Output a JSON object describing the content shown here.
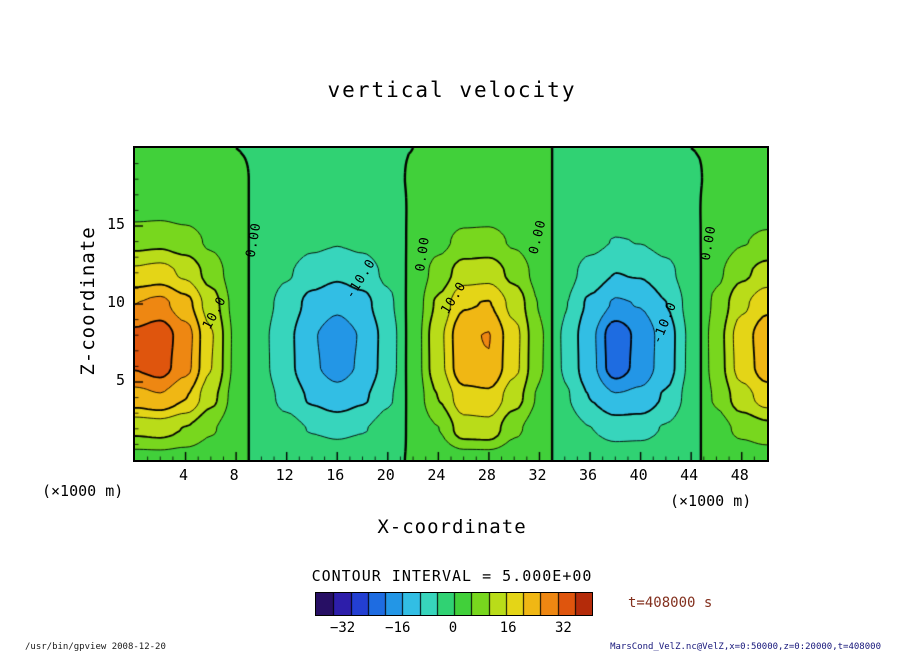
{
  "chart_data": {
    "type": "heatmap",
    "title": "vertical velocity",
    "xlabel": "X-coordinate",
    "ylabel": "Z-coordinate",
    "x_axis_unit": "(×1000 m)",
    "y_axis_unit": "(×1000 m)",
    "x_range": [
      0,
      50
    ],
    "z_range": [
      0,
      20
    ],
    "x_ticks": [
      4,
      8,
      12,
      16,
      20,
      24,
      28,
      32,
      36,
      40,
      44,
      48
    ],
    "z_ticks": [
      5,
      10,
      15
    ],
    "x": [
      0,
      2,
      4,
      6,
      8,
      10,
      12,
      14,
      16,
      18,
      20,
      22,
      24,
      26,
      28,
      30,
      32,
      34,
      36,
      38,
      40,
      42,
      44,
      46,
      48,
      50
    ],
    "z": [
      0,
      2,
      4,
      6,
      8,
      10,
      12,
      14,
      16,
      18,
      20
    ],
    "field": [
      [
        2.6,
        2.7,
        2.2,
        1.3,
        0.3,
        -0.3,
        -0.7,
        -1.2,
        -1.4,
        -1.2,
        -0.6,
        0.2,
        1.1,
        2.0,
        2.1,
        1.4,
        0.5,
        -0.5,
        -1.1,
        -1.6,
        -1.5,
        -1.0,
        -0.3,
        0.6,
        1.4,
        1.9
      ],
      [
        11.2,
        11.9,
        9.8,
        5.6,
        1.4,
        -1.4,
        -3.2,
        -5.3,
        -6.3,
        -5.3,
        -2.8,
        0.7,
        4.9,
        12.8,
        13.2,
        6.0,
        2.1,
        -2.1,
        -4.9,
        -7.0,
        -6.7,
        -4.6,
        -1.4,
        2.8,
        6.3,
        8.4
      ],
      [
        23.0,
        24.5,
        20.2,
        11.5,
        2.9,
        -2.9,
        -6.5,
        -10.8,
        -13.0,
        -10.8,
        -5.8,
        1.4,
        10.1,
        18.0,
        18.7,
        12.2,
        4.3,
        -4.3,
        -10.1,
        -14.4,
        -13.7,
        -9.4,
        -2.9,
        5.8,
        13.0,
        17.3
      ],
      [
        30.4,
        32.3,
        26.6,
        15.2,
        3.8,
        -3.8,
        -8.6,
        -14.3,
        -17.1,
        -14.3,
        -7.6,
        1.9,
        13.3,
        23.8,
        24.7,
        16.2,
        5.7,
        -5.7,
        -13.3,
        -23.0,
        -18.1,
        -12.4,
        -3.8,
        7.6,
        17.1,
        22.8
      ],
      [
        31.0,
        33.0,
        27.2,
        15.5,
        3.9,
        -3.9,
        -8.7,
        -14.6,
        -17.5,
        -14.6,
        -7.8,
        1.9,
        13.6,
        24.3,
        25.2,
        16.5,
        5.8,
        -5.8,
        -13.6,
        -23.5,
        -18.4,
        -12.6,
        -3.9,
        7.8,
        17.5,
        23.3
      ],
      [
        25.0,
        26.5,
        21.8,
        12.5,
        3.1,
        -3.1,
        -7.0,
        -11.7,
        -14.0,
        -11.7,
        -6.2,
        1.6,
        10.9,
        19.5,
        20.3,
        13.3,
        4.7,
        -4.7,
        -10.9,
        -15.6,
        -14.8,
        -10.1,
        -3.1,
        6.2,
        14.0,
        18.7
      ],
      [
        16.0,
        17.0,
        14.0,
        8.0,
        2.0,
        -2.0,
        -4.5,
        -7.5,
        -9.0,
        -7.5,
        -4.0,
        1.0,
        7.0,
        12.5,
        13.0,
        8.5,
        3.0,
        -3.0,
        -7.0,
        -10.0,
        -9.5,
        -6.5,
        -2.0,
        4.0,
        9.0,
        12.0
      ],
      [
        8.3,
        8.8,
        7.3,
        4.2,
        1.0,
        -1.0,
        -2.3,
        -3.9,
        -4.7,
        -3.9,
        -2.1,
        0.5,
        3.6,
        6.5,
        6.8,
        4.4,
        1.6,
        -1.6,
        -3.6,
        -5.2,
        -4.9,
        -3.4,
        -1.0,
        2.1,
        4.7,
        6.2
      ],
      [
        3.5,
        3.7,
        3.1,
        1.8,
        0.4,
        -0.4,
        -1.0,
        -1.7,
        -2.0,
        -1.7,
        -0.9,
        0.2,
        1.5,
        2.8,
        2.9,
        1.9,
        0.7,
        -0.7,
        -1.5,
        -2.2,
        -2.1,
        -1.4,
        -0.4,
        0.9,
        2.0,
        2.6
      ],
      [
        1.3,
        1.4,
        1.1,
        0.6,
        0.2,
        -0.2,
        -0.4,
        -0.6,
        -0.7,
        -0.6,
        -0.3,
        0.1,
        0.6,
        1.0,
        1.0,
        0.7,
        0.2,
        -0.2,
        -0.6,
        -0.8,
        -0.8,
        -0.5,
        -0.2,
        0.3,
        0.7,
        1.0
      ],
      [
        0.3,
        0.3,
        0.3,
        0.2,
        0.0,
        -0.1,
        -0.1,
        -0.2,
        -0.2,
        -0.2,
        -0.1,
        0.0,
        0.1,
        0.3,
        0.3,
        0.2,
        0.1,
        -0.1,
        -0.1,
        -0.2,
        -0.2,
        -0.1,
        0.0,
        0.1,
        0.2,
        0.2
      ]
    ],
    "contour_interval": 5.0,
    "contour_interval_label": "CONTOUR INTERVAL = 5.000E+00",
    "contour_levels": [
      -25,
      -20,
      -15,
      -10,
      -5,
      0,
      5,
      10,
      15,
      20,
      25,
      30
    ],
    "contour_labels": [
      {
        "text": "10.0",
        "x": 6.3,
        "z": 9.4,
        "rot": -62
      },
      {
        "text": "0.00",
        "x": 9.4,
        "z": 14.1,
        "rot": -80
      },
      {
        "text": "-10.0",
        "x": 17.9,
        "z": 11.6,
        "rot": -58
      },
      {
        "text": "0.00",
        "x": 22.8,
        "z": 13.2,
        "rot": -82
      },
      {
        "text": "10.0",
        "x": 25.2,
        "z": 10.4,
        "rot": -58
      },
      {
        "text": "0.00",
        "x": 31.9,
        "z": 14.3,
        "rot": -76
      },
      {
        "text": "-10.0",
        "x": 41.9,
        "z": 8.8,
        "rot": -68
      },
      {
        "text": "0.00",
        "x": 45.4,
        "z": 13.9,
        "rot": -80
      }
    ],
    "colormap": [
      [
        -40,
        "#1c0a3c"
      ],
      [
        -35,
        "#32148c"
      ],
      [
        -30,
        "#2828c8"
      ],
      [
        -25,
        "#1e55dc"
      ],
      [
        -20,
        "#1e82e6"
      ],
      [
        -15,
        "#28aae6"
      ],
      [
        -10,
        "#3cd2e1"
      ],
      [
        -5,
        "#32d796"
      ],
      [
        0,
        "#2dcd50"
      ],
      [
        5,
        "#55d223"
      ],
      [
        10,
        "#9bdc19"
      ],
      [
        15,
        "#d7dc19"
      ],
      [
        20,
        "#f0cd14"
      ],
      [
        25,
        "#f0a014"
      ],
      [
        30,
        "#eb6e0f"
      ],
      [
        35,
        "#d23c0a"
      ],
      [
        40,
        "#96190a"
      ]
    ],
    "colorbar": {
      "range": [
        -40,
        40
      ],
      "ticks": [
        -32,
        -16,
        0,
        16,
        32
      ]
    },
    "time_label": "t=408000 s"
  },
  "footer": {
    "left": "/usr/bin/gpview  2008-12-20",
    "right": "MarsCond_VelZ.nc@VelZ,x=0:50000,z=0:20000,t=408000"
  },
  "colors": {
    "line": "#000000",
    "time_text": "#83301e",
    "footer_left_text": "#1a1a1a",
    "footer_right_text": "#15157a"
  }
}
